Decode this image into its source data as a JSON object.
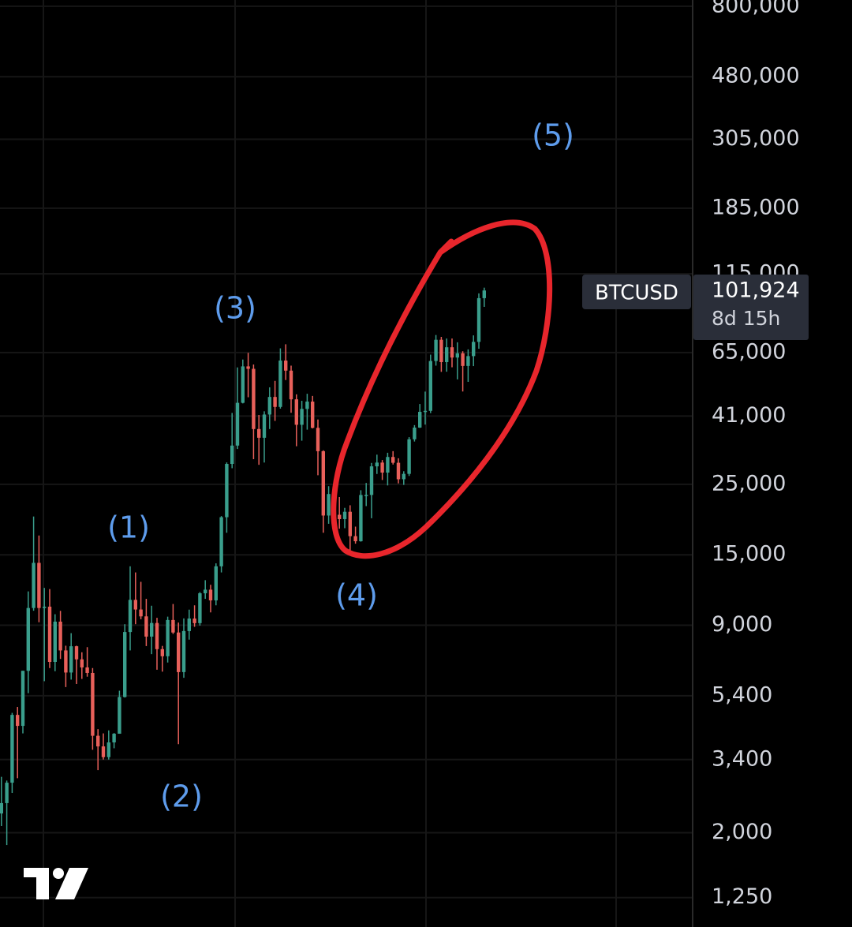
{
  "chart_data": {
    "type": "candlestick",
    "log_scale": true,
    "grid": true,
    "up_color": "#3a9e8c",
    "down_color": "#e8605a",
    "ylim": [
      1010,
      837000
    ],
    "yticks": [
      {
        "value": 800000,
        "label": "800,000"
      },
      {
        "value": 480000,
        "label": "480,000"
      },
      {
        "value": 305000,
        "label": "305,000"
      },
      {
        "value": 185000,
        "label": "185,000"
      },
      {
        "value": 115000,
        "label": "115,000"
      },
      {
        "value": 65000,
        "label": "65,000"
      },
      {
        "value": 41000,
        "label": "41,000"
      },
      {
        "value": 25000,
        "label": "25,000"
      },
      {
        "value": 15000,
        "label": "15,000"
      },
      {
        "value": 9000,
        "label": "9,000"
      },
      {
        "value": 5400,
        "label": "5,400"
      },
      {
        "value": 3400,
        "label": "3,400"
      },
      {
        "value": 2000,
        "label": "2,000"
      },
      {
        "value": 1250,
        "label": "1,250"
      }
    ],
    "categories": [
      null,
      null,
      null,
      null,
      null,
      null,
      null,
      null,
      null,
      null,
      null,
      null,
      null,
      null,
      null,
      null,
      null,
      null,
      null,
      null,
      null,
      null,
      null,
      null,
      null,
      null,
      null,
      null,
      null,
      null,
      null,
      null,
      null,
      null,
      null,
      null,
      null,
      null,
      null,
      null,
      null,
      null,
      null,
      null,
      null,
      null,
      null,
      null,
      null,
      null,
      null,
      null,
      null,
      null,
      null,
      null,
      null,
      null,
      null,
      null,
      null,
      null,
      null,
      null,
      null,
      null,
      null,
      null,
      null,
      null,
      null,
      null,
      null,
      null,
      null,
      null,
      null,
      null,
      null,
      null,
      null,
      null,
      null,
      null,
      null,
      null,
      null,
      null,
      null,
      null,
      null,
      null
    ],
    "open": [
      1350,
      2300,
      2480,
      2875,
      4700,
      4340,
      6470,
      10200,
      14150,
      10200,
      10300,
      6900,
      9240,
      7500,
      6390,
      7730,
      7030,
      6630,
      6370,
      4040,
      3740,
      3460,
      3850,
      4100,
      5350,
      8570,
      10820,
      10090,
      9600,
      8290,
      9150,
      7570,
      7190,
      9350,
      8540,
      6410,
      8630,
      9450,
      9140,
      11350,
      11650,
      10780,
      13800,
      19700,
      28990,
      33110,
      45140,
      58780,
      57750,
      37330,
      35040,
      41460,
      47100,
      43820,
      61320,
      57000,
      46300,
      38500,
      43190,
      45540,
      37650,
      31790,
      19940,
      23300,
      20050,
      19430,
      20490,
      17170,
      16550,
      23140,
      23150,
      28480,
      29270,
      27220,
      30480,
      29230,
      25940,
      26970,
      34650,
      37720,
      42280,
      42580,
      61130,
      71290,
      60640,
      67520,
      62680,
      64630,
      58970,
      63330,
      70220,
      96400
    ],
    "high": [
      2760,
      3000,
      2920,
      4770,
      4980,
      6470,
      11500,
      19800,
      17250,
      11800,
      11700,
      9750,
      9990,
      7760,
      8500,
      7760,
      7400,
      7680,
      6600,
      4240,
      4110,
      4200,
      4120,
      5600,
      9070,
      13800,
      13200,
      12330,
      10900,
      10370,
      9500,
      7750,
      9580,
      10500,
      9180,
      9460,
      10080,
      10400,
      11450,
      12480,
      12070,
      14100,
      19860,
      29300,
      41950,
      58350,
      61780,
      64850,
      59600,
      41330,
      42450,
      50500,
      52920,
      67000,
      69000,
      59100,
      48000,
      45800,
      48200,
      47450,
      40000,
      31990,
      24670,
      25200,
      22800,
      21080,
      21480,
      18400,
      23950,
      25250,
      29200,
      31000,
      29820,
      31430,
      31800,
      30200,
      27490,
      35200,
      38400,
      44750,
      48970,
      64000,
      73800,
      72800,
      71950,
      71950,
      70000,
      65600,
      66500,
      73600,
      99800,
      104000
    ],
    "low": [
      1350,
      2100,
      1830,
      2670,
      2970,
      4110,
      5500,
      10000,
      9200,
      6000,
      6600,
      6450,
      7050,
      5750,
      6070,
      5880,
      6100,
      6200,
      3650,
      3150,
      3400,
      3400,
      3690,
      4100,
      5330,
      7500,
      9070,
      9400,
      7740,
      7300,
      6520,
      6430,
      6870,
      8450,
      3800,
      6150,
      8110,
      8900,
      8980,
      10900,
      9880,
      10400,
      13200,
      17600,
      28100,
      32300,
      44950,
      47000,
      30000,
      28800,
      29280,
      37330,
      39600,
      43280,
      53250,
      42000,
      32950,
      34300,
      37160,
      37500,
      26700,
      17600,
      18780,
      19520,
      18130,
      18190,
      15480,
      16260,
      16500,
      21350,
      19550,
      26950,
      25800,
      24800,
      28860,
      25170,
      24900,
      26560,
      34100,
      37630,
      38550,
      41900,
      59100,
      56500,
      56550,
      58400,
      53500,
      49000,
      52550,
      58900,
      66800,
      90500
    ],
    "close": [
      2300,
      2480,
      2875,
      4700,
      4340,
      6470,
      10200,
      14150,
      10200,
      10300,
      6900,
      9240,
      7500,
      6390,
      7730,
      7030,
      6630,
      6370,
      4040,
      3740,
      3460,
      3850,
      4100,
      5350,
      8570,
      10820,
      10090,
      9600,
      8290,
      9150,
      7570,
      7190,
      9350,
      8540,
      6410,
      8630,
      9450,
      9140,
      11350,
      11650,
      10780,
      13800,
      19700,
      28990,
      33110,
      45140,
      58780,
      57750,
      37330,
      35040,
      41460,
      47100,
      43820,
      61320,
      57000,
      46300,
      38500,
      43190,
      45540,
      37650,
      31790,
      19940,
      23300,
      20050,
      19430,
      20490,
      17170,
      16550,
      23140,
      23150,
      28480,
      29270,
      27220,
      30480,
      29230,
      25940,
      26970,
      34650,
      37720,
      42280,
      42580,
      61130,
      71290,
      60640,
      67520,
      62680,
      64630,
      58970,
      63330,
      70220,
      96400,
      101924
    ],
    "annotations": [
      "(1)",
      "(2)",
      "(3)",
      "(4)",
      "(5)"
    ],
    "symbol": "BTCUSD",
    "last_price_label": "101,924",
    "countdown": "8d 15h"
  }
}
